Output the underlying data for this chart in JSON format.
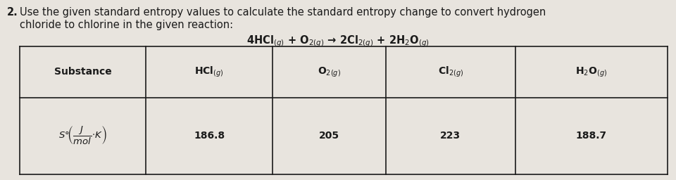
{
  "bg_color": "#e8e4de",
  "text_color": "#1a1a1a",
  "problem_number": "2.",
  "main_text_line1": "Use the given standard entropy values to calculate the standard entropy change to convert hydrogen",
  "main_text_line2": "chloride to chlorine in the given reaction:",
  "reaction_display": "4HCl$_{(g)}$ + O$_{2(g)}$ → 2Cl$_{2(g)}$ + 2H$_2$O$_{(g)}$",
  "col_headers": [
    "Substance",
    "HCl$_{(g)}$",
    "O$_{2(g)}$",
    "Cl$_{2(g)}$",
    "H$_2$O$_{(g)}$"
  ],
  "values": [
    "186.8",
    "205",
    "223",
    "188.7"
  ],
  "font_size_main": 10.5,
  "font_size_table": 10.0,
  "font_size_reaction": 10.5
}
